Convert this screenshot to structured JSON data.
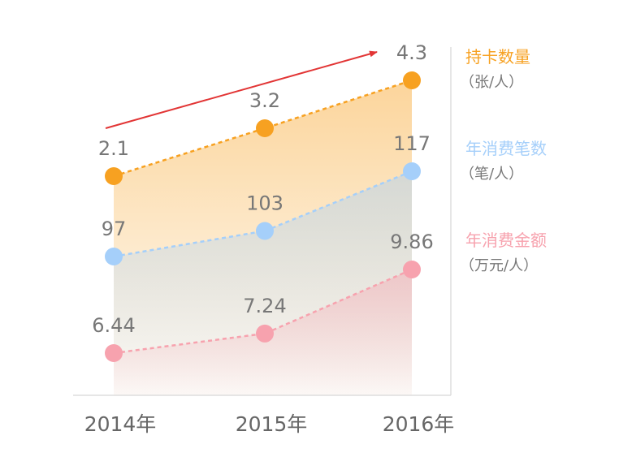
{
  "chart_data": {
    "type": "line",
    "title": "",
    "xlabel": "",
    "ylabel": "",
    "categories": [
      "2014年",
      "2015年",
      "2016年"
    ],
    "series": [
      {
        "name": "持卡数量",
        "unit": "（张/人）",
        "values": [
          2.1,
          3.2,
          4.3
        ],
        "value_labels": [
          "2.1",
          "3.2",
          "4.3"
        ],
        "color": "#F7A121",
        "fill": "area",
        "style": "dashed"
      },
      {
        "name": "年消费笔数",
        "unit": "（笔/人）",
        "values": [
          97,
          103,
          117
        ],
        "value_labels": [
          "97",
          "103",
          "117"
        ],
        "color": "#A5CFFA",
        "fill": "area",
        "style": "dashed"
      },
      {
        "name": "年消费金额",
        "unit": "（万元/人）",
        "values": [
          6.44,
          7.24,
          9.86
        ],
        "value_labels": [
          "6.44",
          "7.24",
          "9.86"
        ],
        "color": "#F7A2AE",
        "fill": "area",
        "style": "dashed"
      }
    ],
    "legend_position": "right",
    "grid": false,
    "trend_arrow": {
      "color": "#E23535",
      "direction": "up-right"
    }
  }
}
